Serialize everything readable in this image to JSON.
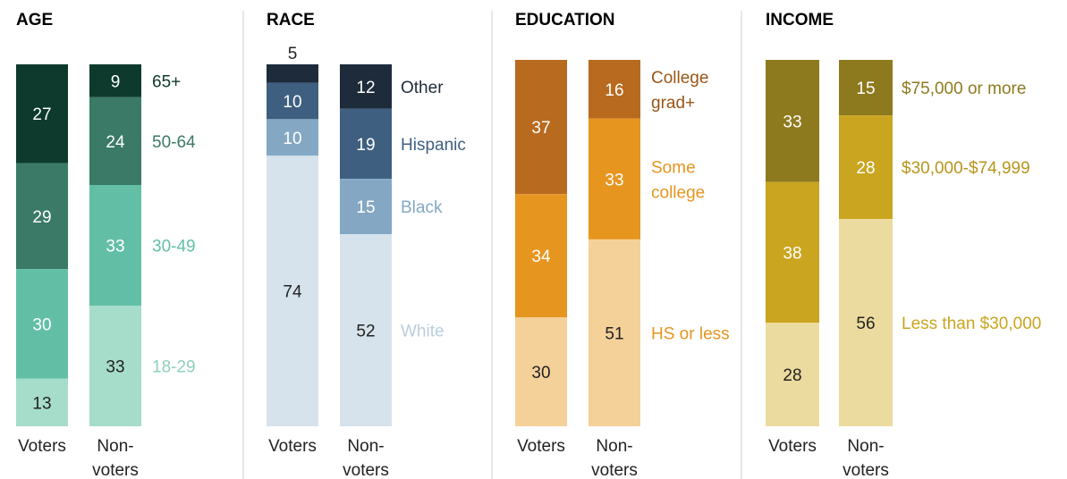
{
  "chart_data": [
    {
      "type": "bar",
      "stacked": true,
      "title": "AGE",
      "categories": [
        "Voters",
        "Non-voters"
      ],
      "series": [
        {
          "name": "65+",
          "values": [
            27,
            9
          ],
          "color": "#0e3a2e",
          "text_color": "#ffffff",
          "legend_color": "#0e3a2e"
        },
        {
          "name": "50-64",
          "values": [
            29,
            24
          ],
          "color": "#3a7a66",
          "text_color": "#ffffff",
          "legend_color": "#3a7a66"
        },
        {
          "name": "30-49",
          "values": [
            30,
            33
          ],
          "color": "#62bfa6",
          "text_color": "#ffffff",
          "legend_color": "#62bfa6"
        },
        {
          "name": "18-29",
          "values": [
            13,
            33
          ],
          "color": "#a6dcca",
          "text_color": "#222222",
          "legend_color": "#8fd0b8"
        }
      ]
    },
    {
      "type": "bar",
      "stacked": true,
      "title": "RACE",
      "categories": [
        "Voters",
        "Non-voters"
      ],
      "series": [
        {
          "name": "Other",
          "values": [
            5,
            12
          ],
          "color": "#1e2b3a",
          "text_color": "#ffffff",
          "legend_color": "#1e2b3a"
        },
        {
          "name": "Hispanic",
          "values": [
            10,
            19
          ],
          "color": "#3f5f80",
          "text_color": "#ffffff",
          "legend_color": "#3f5f80"
        },
        {
          "name": "Black",
          "values": [
            10,
            15
          ],
          "color": "#84a8c4",
          "text_color": "#ffffff",
          "legend_color": "#84a8c4"
        },
        {
          "name": "White",
          "values": [
            74,
            52
          ],
          "color": "#d6e3ec",
          "text_color": "#222222",
          "legend_color": "#b9cede"
        }
      ]
    },
    {
      "type": "bar",
      "stacked": true,
      "title": "EDUCATION",
      "categories": [
        "Voters",
        "Non-voters"
      ],
      "series": [
        {
          "name": "College grad+",
          "values": [
            37,
            16
          ],
          "color": "#b86a1f",
          "text_color": "#ffffff",
          "legend_color": "#9a5616",
          "legend_lines": [
            "College",
            "grad+"
          ]
        },
        {
          "name": "Some college",
          "values": [
            34,
            33
          ],
          "color": "#e6951f",
          "text_color": "#ffffff",
          "legend_color": "#e6951f",
          "legend_lines": [
            "Some",
            "college"
          ]
        },
        {
          "name": "HS or less",
          "values": [
            30,
            51
          ],
          "color": "#f5d19a",
          "text_color": "#222222",
          "legend_color": "#e6951f",
          "legend_lines": [
            "HS or less"
          ]
        }
      ]
    },
    {
      "type": "bar",
      "stacked": true,
      "title": "INCOME",
      "categories": [
        "Voters",
        "Non-voters"
      ],
      "series": [
        {
          "name": "$75,000 or more",
          "values": [
            33,
            15
          ],
          "color": "#8e7a1e",
          "text_color": "#ffffff",
          "legend_color": "#8e7a1e"
        },
        {
          "name": "$30,000-$74,999",
          "values": [
            38,
            28
          ],
          "color": "#c9a520",
          "text_color": "#ffffff",
          "legend_color": "#b8951c"
        },
        {
          "name": "Less than $30,000",
          "values": [
            28,
            56
          ],
          "color": "#ecdb9e",
          "text_color": "#222222",
          "legend_color": "#c9a520"
        }
      ]
    }
  ]
}
